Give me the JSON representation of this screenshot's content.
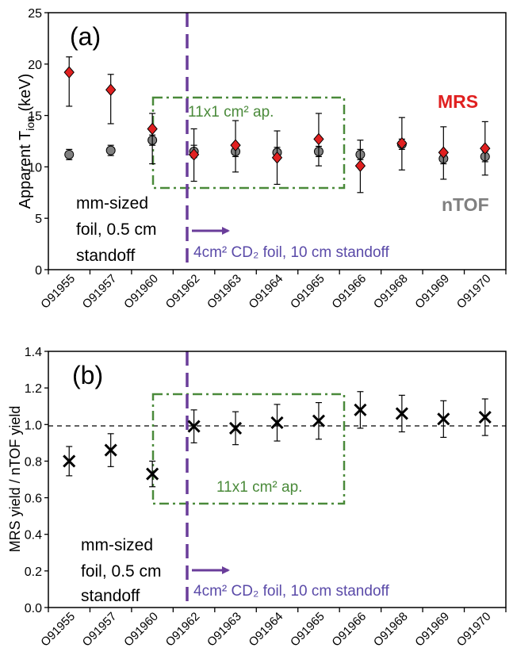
{
  "chart_data": [
    {
      "type": "scatter",
      "panel_label": "(a)",
      "ylabel_main": "Apparent T",
      "ylabel_sub": "ion",
      "ylabel_unit": " (keV)",
      "ylim": [
        0,
        25
      ],
      "yticks": [
        0,
        5,
        10,
        15,
        20,
        25
      ],
      "categories": [
        "O91955",
        "O91957",
        "O91960",
        "O91962",
        "O91963",
        "O91964",
        "O91965",
        "O91966",
        "O91968",
        "O91969",
        "O91970"
      ],
      "grid": false,
      "legend_labels": {
        "mrs": "MRS",
        "ntof": "nTOF"
      },
      "series": [
        {
          "name": "MRS",
          "color": "#e02020",
          "marker": "diamond",
          "values": [
            19.2,
            17.5,
            13.7,
            11.2,
            12.1,
            10.9,
            12.7,
            10.1,
            12.3,
            11.4,
            11.8
          ],
          "err_low": [
            3.3,
            3.3,
            3.4,
            2.6,
            2.6,
            2.6,
            2.6,
            2.6,
            2.6,
            2.6,
            2.6
          ],
          "err_high": [
            1.5,
            1.5,
            1.5,
            2.5,
            2.4,
            2.6,
            2.5,
            2.5,
            2.5,
            2.5,
            2.6
          ]
        },
        {
          "name": "nTOF",
          "color": "#808080",
          "marker": "circle",
          "values": [
            11.2,
            11.6,
            12.6,
            11.5,
            11.5,
            11.4,
            11.5,
            11.2,
            12.2,
            10.8,
            11.0
          ],
          "err_low": [
            0.5,
            0.5,
            0.5,
            0.6,
            0.5,
            0.5,
            0.5,
            0.5,
            0.5,
            0.5,
            0.5
          ],
          "err_high": [
            0.5,
            0.5,
            0.5,
            0.6,
            0.5,
            0.5,
            0.5,
            0.5,
            0.5,
            0.5,
            0.5
          ]
        }
      ],
      "annotations": {
        "aperture": "11x1 cm² ap.",
        "left_lines": [
          "mm-sized",
          "foil, 0.5 cm",
          "standoff"
        ],
        "right_label": "4cm² CD₂ foil, 10 cm standoff"
      }
    },
    {
      "type": "scatter",
      "panel_label": "(b)",
      "ylabel": "MRS yield / nTOF yield",
      "ylim": [
        0,
        1.4
      ],
      "yticks": [
        "0.0",
        "0.2",
        "0.4",
        "0.6",
        "0.8",
        "1.0",
        "1.2",
        "1.4"
      ],
      "categories": [
        "O91955",
        "O91957",
        "O91960",
        "O91962",
        "O91963",
        "O91964",
        "O91965",
        "O91966",
        "O91968",
        "O91969",
        "O91970"
      ],
      "reference_line": 1.0,
      "grid": false,
      "series": [
        {
          "marker": "x",
          "color": "#000000",
          "values": [
            0.8,
            0.86,
            0.73,
            0.99,
            0.98,
            1.01,
            1.02,
            1.08,
            1.06,
            1.03,
            1.04
          ],
          "err_low": [
            0.08,
            0.09,
            0.07,
            0.09,
            0.09,
            0.1,
            0.1,
            0.1,
            0.1,
            0.1,
            0.1
          ],
          "err_high": [
            0.08,
            0.09,
            0.07,
            0.09,
            0.09,
            0.1,
            0.1,
            0.1,
            0.1,
            0.1,
            0.1
          ]
        }
      ],
      "annotations": {
        "aperture": "11x1 cm² ap.",
        "left_lines": [
          "mm-sized",
          "foil, 0.5 cm",
          "standoff"
        ],
        "right_label": "4cm² CD₂ foil, 10 cm standoff"
      }
    }
  ],
  "colors": {
    "divider": "#6a3d9a",
    "arrow": "#6a3d9a",
    "right_label": "#5a4aa8",
    "aperture": "#4a8a3a",
    "mrs_label": "#e02020",
    "ntof_label": "#808080"
  }
}
